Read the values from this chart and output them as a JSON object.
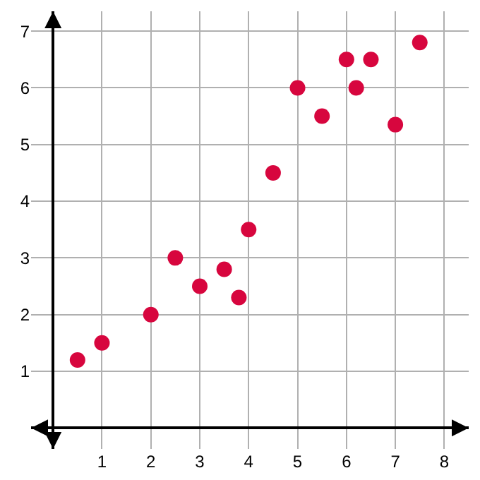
{
  "chart_data": {
    "type": "scatter",
    "x": [
      0.5,
      1,
      2,
      2.5,
      3,
      3.5,
      3.8,
      4,
      4.5,
      5,
      5.5,
      6,
      6.2,
      6.5,
      7,
      7.5
    ],
    "series": [
      {
        "color": "#d7063e",
        "values": [
          1.2,
          1.5,
          2,
          3,
          2.5,
          2.8,
          2.3,
          3.5,
          4.5,
          6,
          5.5,
          6.5,
          6,
          6.5,
          5.35,
          6.8
        ]
      }
    ],
    "xlim": [
      -0.45,
      8.5
    ],
    "ylim": [
      -0.37,
      7.35
    ],
    "xticks": [
      1,
      2,
      3,
      4,
      5,
      6,
      7,
      8
    ],
    "yticks": [
      1,
      2,
      3,
      4,
      5,
      6,
      7
    ],
    "grid": true,
    "marker": "circle"
  }
}
